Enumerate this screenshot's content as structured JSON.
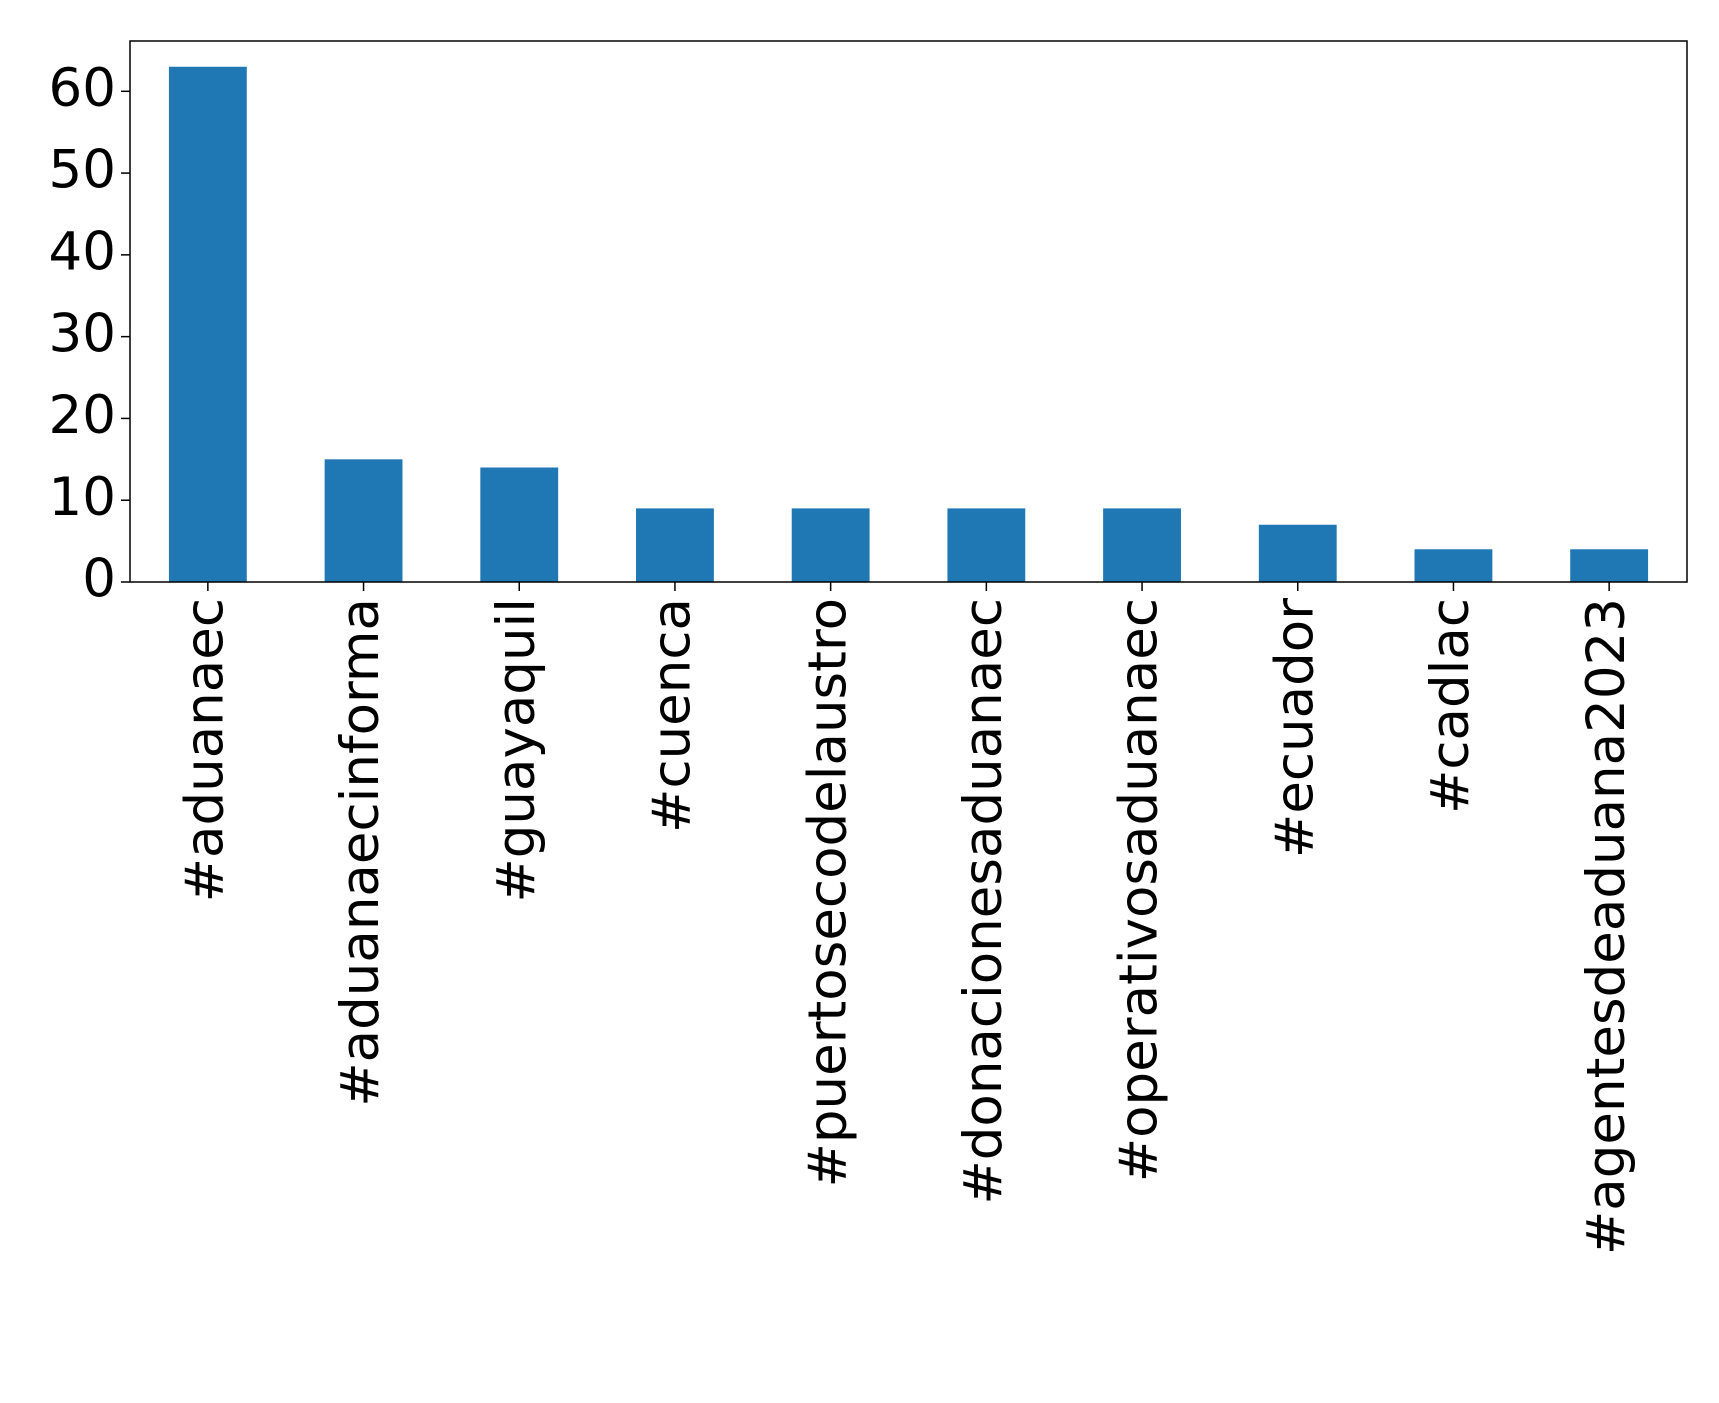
{
  "chart_data": {
    "type": "bar",
    "categories": [
      "#aduanaec",
      "#aduanaecinforma",
      "#guayaquil",
      "#cuenca",
      "#puertosecodelaustro",
      "#donacionesaduanaec",
      "#operativosaduanaec",
      "#ecuador",
      "#cadlac",
      "#agentesdeaduana2023"
    ],
    "values": [
      63,
      15,
      14,
      9,
      9,
      9,
      9,
      7,
      4,
      4
    ],
    "color": "#1f77b4",
    "ylim": [
      0,
      66.15
    ],
    "yticks": [
      0,
      10,
      20,
      30,
      40,
      50,
      60
    ],
    "grid": false
  }
}
